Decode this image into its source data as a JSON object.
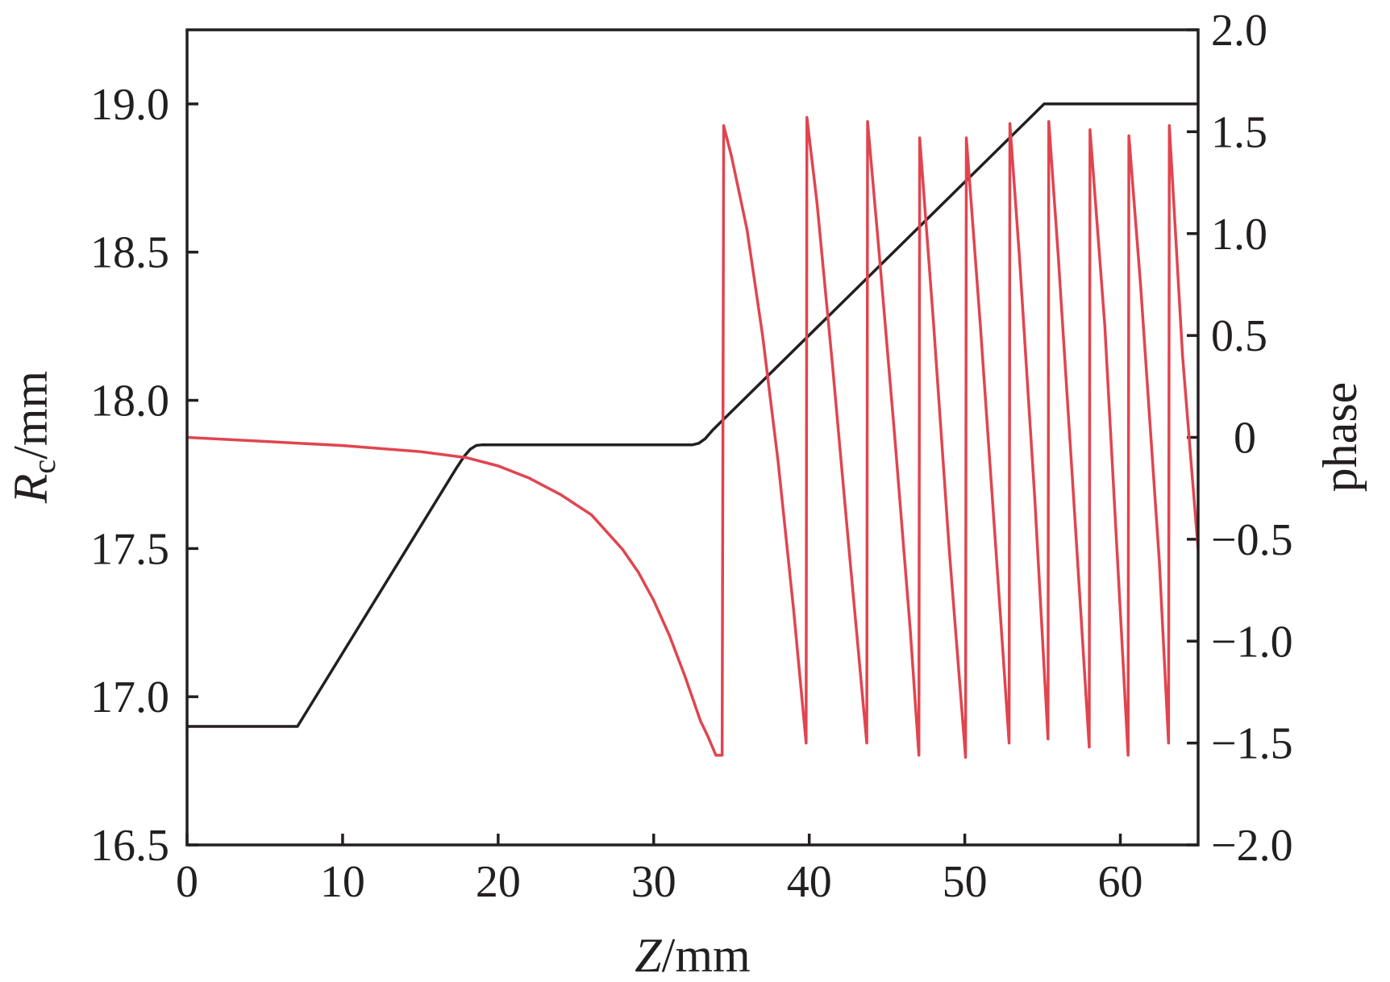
{
  "chart_data": {
    "type": "line",
    "xlabel": {
      "italic": "Z",
      "rest": "/mm"
    },
    "ylabel_left": {
      "italic": "R",
      "sub": "c",
      "rest": "/mm"
    },
    "ylabel_right": "phase",
    "xlim": [
      0,
      65
    ],
    "ylim_left": [
      16.5,
      19.25
    ],
    "ylim_right": [
      -2.0,
      2.0
    ],
    "x_ticks": [
      0,
      10,
      20,
      30,
      40,
      50,
      60
    ],
    "x_tick_labels": [
      "0",
      "10",
      "20",
      "30",
      "40",
      "50",
      "60"
    ],
    "y_left_ticks": [
      16.5,
      17.0,
      17.5,
      18.0,
      18.5,
      19.0
    ],
    "y_left_tick_labels": [
      "16.5",
      "17.0",
      "17.5",
      "18.0",
      "18.5",
      "19.0"
    ],
    "y_right_ticks": [
      -2.0,
      -1.5,
      -1.0,
      -0.5,
      0,
      0.5,
      1.0,
      1.5,
      2.0
    ],
    "y_right_tick_labels": [
      "−2.0",
      "−1.5",
      "−1.0",
      "−0.5",
      "0",
      "0.5",
      "1.0",
      "1.5",
      "2.0"
    ],
    "grid": false,
    "series": [
      {
        "axis": "left",
        "color": "#231f20",
        "x": [
          0,
          7.1,
          17.3,
          17.8,
          18.2,
          18.6,
          19.0,
          32.5,
          32.9,
          33.3,
          33.8,
          55.1,
          55.2,
          65
        ],
        "y": [
          16.9,
          16.9,
          17.77,
          17.81,
          17.835,
          17.848,
          17.85,
          17.85,
          17.855,
          17.87,
          17.9,
          19.0,
          19.0,
          19.0
        ]
      },
      {
        "axis": "right",
        "color": "#e0454f",
        "x": [
          0,
          5,
          10,
          15,
          18,
          20,
          22,
          24,
          26,
          28,
          29,
          30,
          31,
          32,
          33,
          33.5,
          34,
          34.4,
          34.5,
          35,
          36,
          37,
          38,
          39,
          39.8,
          39.85,
          40.5,
          41.5,
          42.5,
          43.7,
          43.75,
          44.5,
          45.5,
          46.5,
          47.05,
          47.1,
          48,
          49,
          50.05,
          50.1,
          51,
          52,
          52.85,
          52.9,
          53.5,
          54.5,
          55.35,
          55.4,
          56,
          57,
          58.0,
          58.05,
          59,
          60.5,
          60.55,
          61.3,
          62.5,
          63.1,
          63.15,
          64,
          65
        ],
        "y": [
          0.0,
          -0.02,
          -0.04,
          -0.07,
          -0.1,
          -0.14,
          -0.2,
          -0.28,
          -0.38,
          -0.55,
          -0.66,
          -0.8,
          -0.97,
          -1.17,
          -1.39,
          -1.47,
          -1.56,
          -1.56,
          1.53,
          1.38,
          1.02,
          0.5,
          -0.12,
          -0.85,
          -1.5,
          1.57,
          1.15,
          0.35,
          -0.5,
          -1.5,
          1.55,
          0.9,
          0.0,
          -0.95,
          -1.56,
          1.47,
          0.55,
          -0.55,
          -1.57,
          1.47,
          0.55,
          -0.55,
          -1.5,
          1.54,
          0.9,
          -0.3,
          -1.48,
          1.55,
          0.9,
          -0.3,
          -1.52,
          1.51,
          0.55,
          -1.56,
          1.48,
          0.75,
          -0.6,
          -1.5,
          1.53,
          0.4,
          -0.55
        ]
      }
    ]
  }
}
